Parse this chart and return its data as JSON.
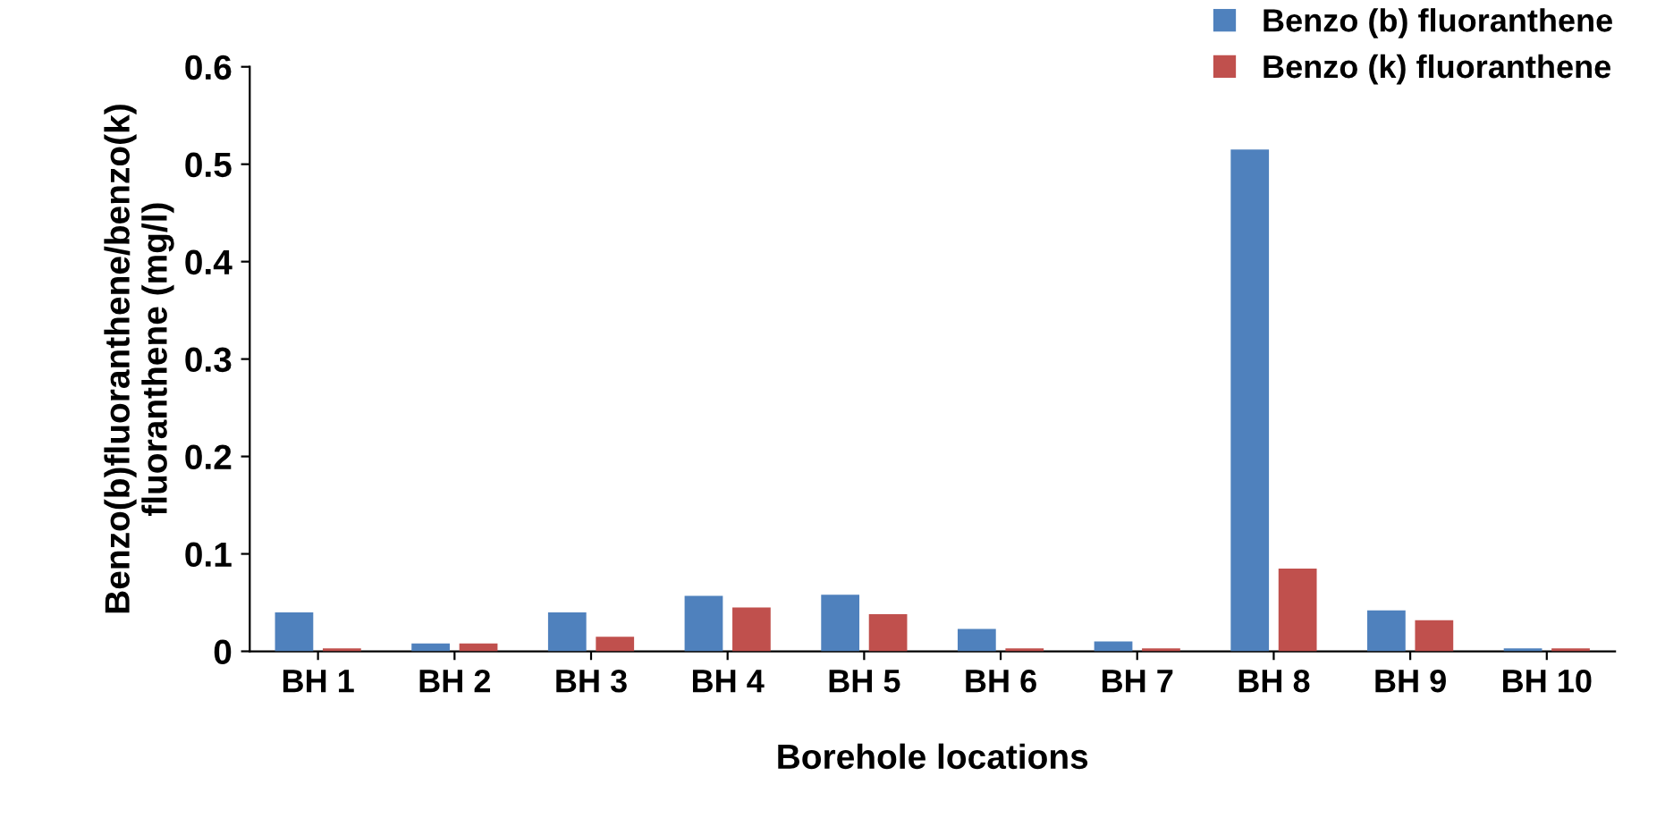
{
  "chart_data": {
    "type": "bar",
    "xlabel": "Borehole locations",
    "ylabel": "Benzo(b)fluoranthene/benzo(k)\nfluoranthene (mg/l)",
    "categories": [
      "BH 1",
      "BH 2",
      "BH 3",
      "BH 4",
      "BH 5",
      "BH 6",
      "BH 7",
      "BH 8",
      "BH 9",
      "BH 10"
    ],
    "series": [
      {
        "name": "Benzo (b) fluoranthene",
        "color": "#4f81bd",
        "values": [
          0.04,
          0.008,
          0.04,
          0.057,
          0.058,
          0.023,
          0.01,
          0.515,
          0.042,
          0.003
        ]
      },
      {
        "name": "Benzo (k) fluoranthene",
        "color": "#c0504d",
        "values": [
          0.003,
          0.008,
          0.015,
          0.045,
          0.038,
          0.003,
          0.003,
          0.085,
          0.032,
          0.003
        ]
      }
    ],
    "ylim": [
      0,
      0.6
    ],
    "yticks": [
      {
        "value": 0,
        "label": "0"
      },
      0.1,
      0.2,
      0.3,
      0.4,
      0.5,
      0.6
    ],
    "grid": false,
    "legend": "top right"
  }
}
